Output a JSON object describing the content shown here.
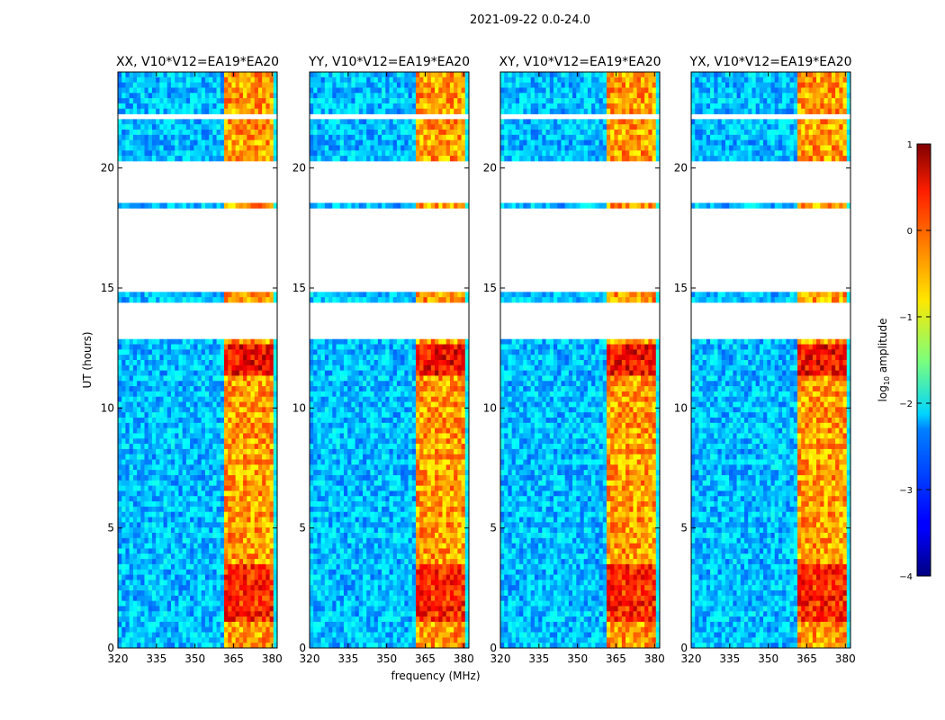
{
  "chart_data": {
    "type": "heatmap",
    "suptitle": "2021-09-22 0.0-24.0",
    "xlabel": "frequency (MHz)",
    "ylabel": "UT (hours)",
    "xlim": [
      320,
      382
    ],
    "ylim": [
      0,
      24
    ],
    "xticks": [
      "320",
      "335",
      "350",
      "365",
      "380"
    ],
    "xtick_values": [
      320,
      335,
      350,
      365,
      380
    ],
    "yticks": [
      "0",
      "5",
      "10",
      "15",
      "20"
    ],
    "ytick_values": [
      0,
      5,
      10,
      15,
      20
    ],
    "panels": [
      {
        "title": "XX, V10*V12=EA19*EA20"
      },
      {
        "title": "YY, V10*V12=EA19*EA20"
      },
      {
        "title": "XY, V10*V12=EA19*EA20"
      },
      {
        "title": "YX, V10*V12=EA19*EA20"
      }
    ],
    "colorbar": {
      "label": "log",
      "label_sub": "10",
      "label_rest": " amplitude",
      "range": [
        -4,
        1
      ],
      "ticks": [
        "1",
        "0",
        "−1",
        "−2",
        "−3",
        "−4"
      ],
      "tick_values": [
        1,
        0,
        -1,
        -2,
        -3,
        -4
      ],
      "colormap": "jet"
    },
    "no_data_hours": [
      [
        12.9,
        14.4
      ],
      [
        14.9,
        18.3
      ],
      [
        18.6,
        20.2
      ],
      [
        22.0,
        22.3
      ]
    ],
    "rfi_band_mhz": [
      362,
      380
    ],
    "colors": {
      "background": "#ffffff",
      "axis": "#000000"
    }
  }
}
